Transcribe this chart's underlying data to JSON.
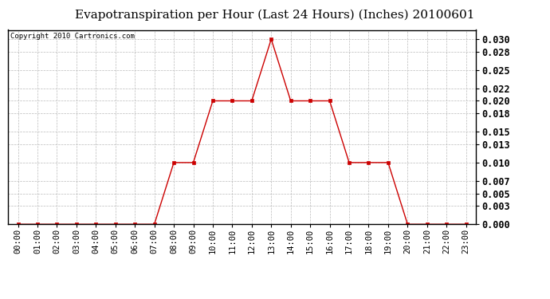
{
  "title": "Evapotranspiration per Hour (Last 24 Hours) (Inches) 20100601",
  "copyright": "Copyright 2010 Cartronics.com",
  "hours": [
    "00:00",
    "01:00",
    "02:00",
    "03:00",
    "04:00",
    "05:00",
    "06:00",
    "07:00",
    "08:00",
    "09:00",
    "10:00",
    "11:00",
    "12:00",
    "13:00",
    "14:00",
    "15:00",
    "16:00",
    "17:00",
    "18:00",
    "19:00",
    "20:00",
    "21:00",
    "22:00",
    "23:00"
  ],
  "values": [
    0.0,
    0.0,
    0.0,
    0.0,
    0.0,
    0.0,
    0.0,
    0.0,
    0.01,
    0.01,
    0.02,
    0.02,
    0.02,
    0.03,
    0.02,
    0.02,
    0.02,
    0.01,
    0.01,
    0.01,
    0.0,
    0.0,
    0.0,
    0.0
  ],
  "line_color": "#cc0000",
  "marker": "s",
  "marker_size": 2.5,
  "background_color": "#ffffff",
  "grid_color": "#bbbbbb",
  "ylim": [
    0.0,
    0.0315
  ],
  "yticks": [
    0.0,
    0.003,
    0.005,
    0.007,
    0.01,
    0.013,
    0.015,
    0.018,
    0.02,
    0.022,
    0.025,
    0.028,
    0.03
  ],
  "title_fontsize": 11,
  "copyright_fontsize": 6.5,
  "tick_fontsize": 7.5,
  "ytick_fontsize": 8.5
}
